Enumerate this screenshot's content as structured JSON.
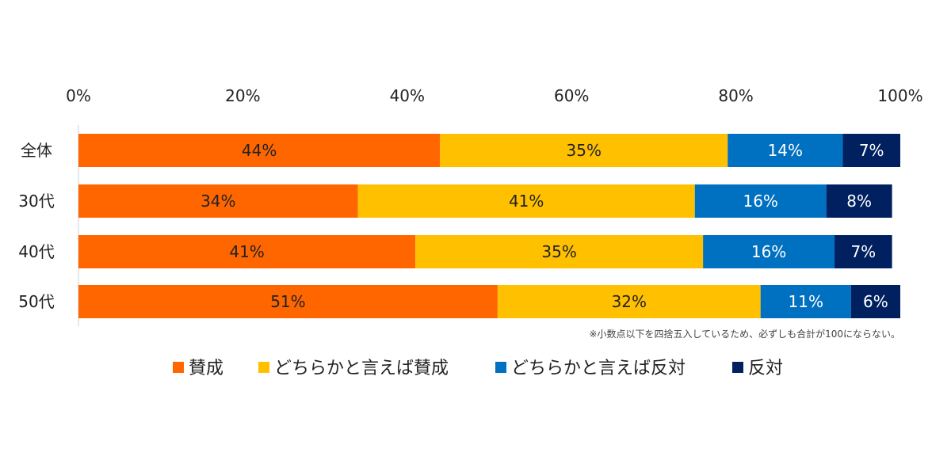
{
  "chart_data": {
    "type": "bar",
    "orientation": "horizontal",
    "stacked": true,
    "categories": [
      "全体",
      "30代",
      "40代",
      "50代"
    ],
    "series": [
      {
        "name": "賛成",
        "values": [
          44,
          34,
          41,
          51
        ],
        "color": "#FF6600",
        "label_color": "#222222"
      },
      {
        "name": "どちらかと言えば賛成",
        "values": [
          35,
          41,
          35,
          32
        ],
        "color": "#FFC000",
        "label_color": "#222222"
      },
      {
        "name": "どちらかと言えば反対",
        "values": [
          14,
          16,
          16,
          11
        ],
        "color": "#0070C0",
        "label_color": "#ffffff"
      },
      {
        "name": "反対",
        "values": [
          7,
          8,
          7,
          6
        ],
        "color": "#002060",
        "label_color": "#ffffff"
      }
    ],
    "data_labels": [
      [
        "44%",
        "35%",
        "14%",
        "7%"
      ],
      [
        "34%",
        "41%",
        "16%",
        "8%"
      ],
      [
        "41%",
        "35%",
        "16%",
        "7%"
      ],
      [
        "51%",
        "32%",
        "11%",
        "6%"
      ]
    ],
    "x_ticks": [
      "0%",
      "20%",
      "40%",
      "60%",
      "80%",
      "100%"
    ],
    "xlim": [
      0,
      100
    ],
    "axis_position": "top",
    "grid": false,
    "legend_position": "bottom",
    "note": "※小数点以下を四捨五入しているため、必ずしも合計が100にならない。"
  }
}
